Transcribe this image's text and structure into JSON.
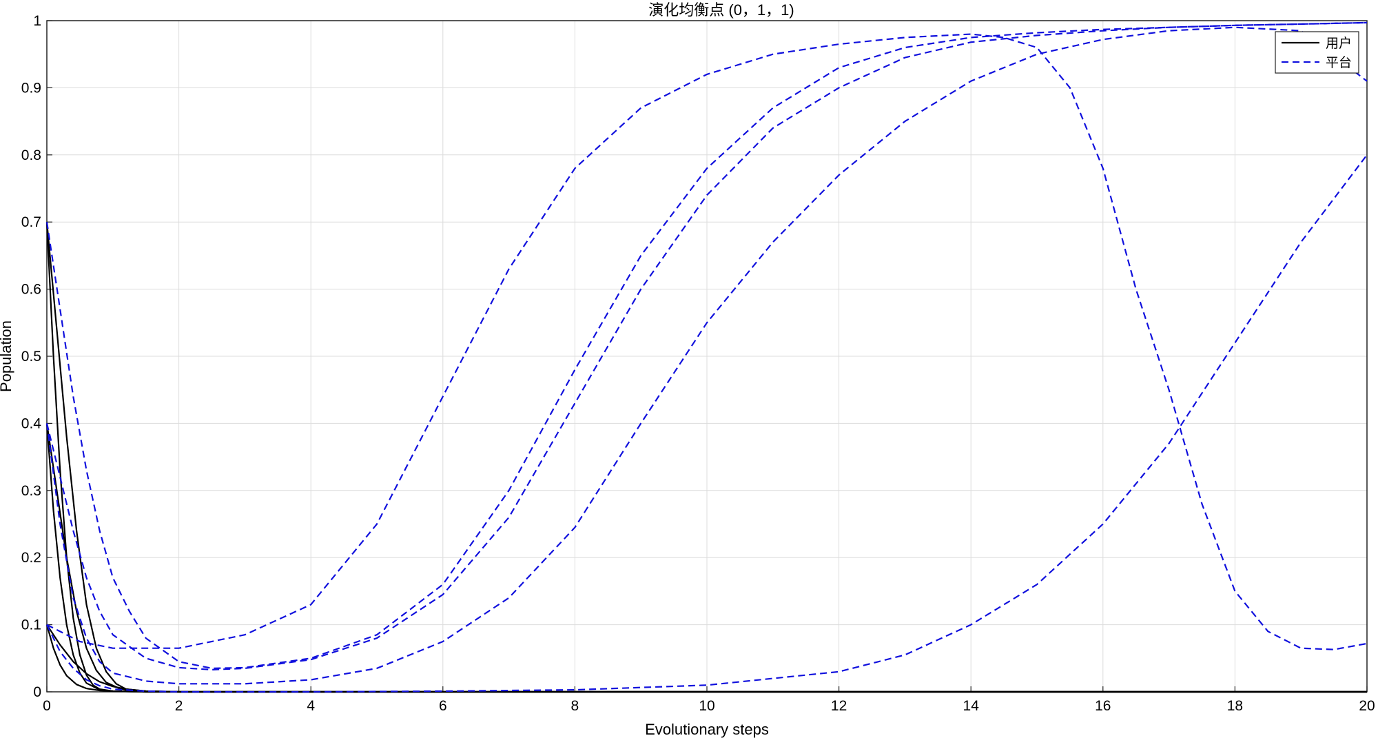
{
  "chart_data": {
    "type": "line",
    "title": "演化均衡点 (0，1，1)",
    "xlabel": "Evolutionary steps",
    "ylabel": "Population",
    "xlim": [
      0,
      20
    ],
    "ylim": [
      0,
      1
    ],
    "xticks": [
      0,
      2,
      4,
      6,
      8,
      10,
      12,
      14,
      16,
      18,
      20
    ],
    "yticks": [
      0,
      0.1,
      0.2,
      0.3,
      0.4,
      0.5,
      0.6,
      0.7,
      0.8,
      0.9,
      1
    ],
    "xtick_labels": [
      "0",
      "2",
      "4",
      "6",
      "8",
      "10",
      "12",
      "14",
      "16",
      "18",
      "20"
    ],
    "ytick_labels": [
      "0",
      "0.1",
      "0.2",
      "0.3",
      "0.4",
      "0.5",
      "0.6",
      "0.7",
      "0.8",
      "0.9",
      "1"
    ],
    "grid": true,
    "legend": {
      "position": "top-right",
      "entries": [
        {
          "label": "用户",
          "style": "solid",
          "color": "#000000"
        },
        {
          "label": "平台",
          "style": "dashed",
          "color": "#1010dd"
        }
      ]
    },
    "series": [
      {
        "group": "用户",
        "color": "#000000",
        "style": "solid",
        "points": [
          [
            0,
            0.7
          ],
          [
            0.1,
            0.5
          ],
          [
            0.2,
            0.33
          ],
          [
            0.3,
            0.2
          ],
          [
            0.4,
            0.11
          ],
          [
            0.5,
            0.055
          ],
          [
            0.6,
            0.025
          ],
          [
            0.7,
            0.01
          ],
          [
            0.8,
            0.004
          ],
          [
            1,
            0.001
          ],
          [
            1.5,
            0
          ],
          [
            20,
            0
          ]
        ]
      },
      {
        "group": "用户",
        "color": "#000000",
        "style": "solid",
        "points": [
          [
            0,
            0.7
          ],
          [
            0.15,
            0.54
          ],
          [
            0.3,
            0.38
          ],
          [
            0.45,
            0.24
          ],
          [
            0.6,
            0.13
          ],
          [
            0.75,
            0.065
          ],
          [
            0.9,
            0.03
          ],
          [
            1.05,
            0.012
          ],
          [
            1.2,
            0.004
          ],
          [
            1.5,
            0.001
          ],
          [
            2,
            0
          ],
          [
            20,
            0
          ]
        ]
      },
      {
        "group": "用户",
        "color": "#000000",
        "style": "solid",
        "points": [
          [
            0,
            0.4
          ],
          [
            0.1,
            0.27
          ],
          [
            0.2,
            0.17
          ],
          [
            0.3,
            0.1
          ],
          [
            0.4,
            0.055
          ],
          [
            0.5,
            0.028
          ],
          [
            0.6,
            0.013
          ],
          [
            0.8,
            0.003
          ],
          [
            1,
            0.001
          ],
          [
            1.5,
            0
          ],
          [
            20,
            0
          ]
        ]
      },
      {
        "group": "用户",
        "color": "#000000",
        "style": "solid",
        "points": [
          [
            0,
            0.4
          ],
          [
            0.15,
            0.3
          ],
          [
            0.3,
            0.2
          ],
          [
            0.45,
            0.12
          ],
          [
            0.6,
            0.065
          ],
          [
            0.75,
            0.032
          ],
          [
            0.9,
            0.014
          ],
          [
            1.1,
            0.005
          ],
          [
            1.3,
            0.001
          ],
          [
            2,
            0
          ],
          [
            20,
            0
          ]
        ]
      },
      {
        "group": "用户",
        "color": "#000000",
        "style": "solid",
        "points": [
          [
            0,
            0.1
          ],
          [
            0.1,
            0.065
          ],
          [
            0.2,
            0.04
          ],
          [
            0.3,
            0.024
          ],
          [
            0.45,
            0.011
          ],
          [
            0.6,
            0.005
          ],
          [
            0.8,
            0.002
          ],
          [
            1,
            0.001
          ],
          [
            1.5,
            0
          ],
          [
            20,
            0
          ]
        ]
      },
      {
        "group": "用户",
        "color": "#000000",
        "style": "solid",
        "points": [
          [
            0,
            0.1
          ],
          [
            0.2,
            0.07
          ],
          [
            0.4,
            0.045
          ],
          [
            0.6,
            0.027
          ],
          [
            0.8,
            0.015
          ],
          [
            1,
            0.008
          ],
          [
            1.2,
            0.004
          ],
          [
            1.5,
            0.001
          ],
          [
            2,
            0
          ],
          [
            20,
            0
          ]
        ]
      },
      {
        "group": "平台",
        "color": "#1010dd",
        "style": "dashed",
        "points": [
          [
            0,
            0.7
          ],
          [
            0.2,
            0.57
          ],
          [
            0.4,
            0.44
          ],
          [
            0.6,
            0.33
          ],
          [
            0.8,
            0.24
          ],
          [
            1,
            0.17
          ],
          [
            1.25,
            0.12
          ],
          [
            1.5,
            0.08
          ],
          [
            2,
            0.045
          ],
          [
            2.5,
            0.035
          ],
          [
            3,
            0.036
          ],
          [
            4,
            0.05
          ],
          [
            5,
            0.085
          ],
          [
            6,
            0.16
          ],
          [
            7,
            0.3
          ],
          [
            8,
            0.48
          ],
          [
            9,
            0.65
          ],
          [
            10,
            0.78
          ],
          [
            11,
            0.87
          ],
          [
            12,
            0.93
          ],
          [
            13,
            0.96
          ],
          [
            14,
            0.975
          ],
          [
            15,
            0.982
          ],
          [
            16,
            0.987
          ],
          [
            17,
            0.99
          ],
          [
            18,
            0.993
          ],
          [
            19,
            0.995
          ],
          [
            20,
            0.997
          ]
        ]
      },
      {
        "group": "平台",
        "color": "#1010dd",
        "style": "dashed",
        "points": [
          [
            0,
            0.4
          ],
          [
            0.2,
            0.32
          ],
          [
            0.4,
            0.24
          ],
          [
            0.6,
            0.17
          ],
          [
            0.8,
            0.12
          ],
          [
            1,
            0.085
          ],
          [
            1.5,
            0.05
          ],
          [
            2,
            0.036
          ],
          [
            2.5,
            0.033
          ],
          [
            3,
            0.035
          ],
          [
            4,
            0.048
          ],
          [
            5,
            0.08
          ],
          [
            6,
            0.145
          ],
          [
            7,
            0.26
          ],
          [
            8,
            0.43
          ],
          [
            9,
            0.6
          ],
          [
            10,
            0.74
          ],
          [
            11,
            0.84
          ],
          [
            12,
            0.9
          ],
          [
            13,
            0.945
          ],
          [
            14,
            0.968
          ],
          [
            15,
            0.978
          ],
          [
            16,
            0.985
          ],
          [
            17,
            0.99
          ],
          [
            18,
            0.993
          ],
          [
            19,
            0.995
          ],
          [
            20,
            0.997
          ]
        ]
      },
      {
        "group": "平台",
        "color": "#1010dd",
        "style": "dashed",
        "points": [
          [
            0,
            0.4
          ],
          [
            0.2,
            0.25
          ],
          [
            0.4,
            0.14
          ],
          [
            0.6,
            0.08
          ],
          [
            0.8,
            0.045
          ],
          [
            1,
            0.028
          ],
          [
            1.5,
            0.016
          ],
          [
            2,
            0.012
          ],
          [
            3,
            0.012
          ],
          [
            4,
            0.018
          ],
          [
            5,
            0.035
          ],
          [
            6,
            0.075
          ],
          [
            7,
            0.14
          ],
          [
            8,
            0.245
          ],
          [
            9,
            0.4
          ],
          [
            10,
            0.55
          ],
          [
            11,
            0.67
          ],
          [
            12,
            0.77
          ],
          [
            13,
            0.85
          ],
          [
            14,
            0.91
          ],
          [
            15,
            0.95
          ],
          [
            16,
            0.972
          ],
          [
            17,
            0.985
          ],
          [
            18,
            0.99
          ],
          [
            19,
            0.985
          ],
          [
            20,
            0.91
          ]
        ]
      },
      {
        "group": "平台",
        "color": "#1010dd",
        "style": "dashed",
        "points": [
          [
            0,
            0.1
          ],
          [
            0.5,
            0.075
          ],
          [
            1,
            0.065
          ],
          [
            2,
            0.065
          ],
          [
            3,
            0.085
          ],
          [
            4,
            0.13
          ],
          [
            5,
            0.25
          ],
          [
            6,
            0.44
          ],
          [
            7,
            0.63
          ],
          [
            8,
            0.78
          ],
          [
            9,
            0.87
          ],
          [
            10,
            0.92
          ],
          [
            11,
            0.95
          ],
          [
            12,
            0.965
          ],
          [
            13,
            0.975
          ],
          [
            14,
            0.98
          ],
          [
            14.5,
            0.975
          ],
          [
            15,
            0.96
          ],
          [
            15.5,
            0.9
          ],
          [
            16,
            0.78
          ],
          [
            16.5,
            0.6
          ],
          [
            17,
            0.45
          ],
          [
            17.5,
            0.28
          ],
          [
            18,
            0.15
          ],
          [
            18.5,
            0.09
          ],
          [
            19,
            0.065
          ],
          [
            19.5,
            0.063
          ],
          [
            20,
            0.072
          ]
        ]
      },
      {
        "group": "平台",
        "color": "#1010dd",
        "style": "dashed",
        "points": [
          [
            0,
            0.1
          ],
          [
            0.2,
            0.06
          ],
          [
            0.4,
            0.035
          ],
          [
            0.6,
            0.018
          ],
          [
            0.8,
            0.009
          ],
          [
            1,
            0.004
          ],
          [
            1.5,
            0.001
          ],
          [
            2,
            0
          ],
          [
            4,
            0.0
          ],
          [
            6,
            0.001
          ],
          [
            8,
            0.003
          ],
          [
            10,
            0.01
          ],
          [
            12,
            0.03
          ],
          [
            13,
            0.055
          ],
          [
            14,
            0.1
          ],
          [
            15,
            0.16
          ],
          [
            16,
            0.25
          ],
          [
            17,
            0.37
          ],
          [
            18,
            0.52
          ],
          [
            19,
            0.67
          ],
          [
            20,
            0.8
          ]
        ]
      }
    ]
  }
}
